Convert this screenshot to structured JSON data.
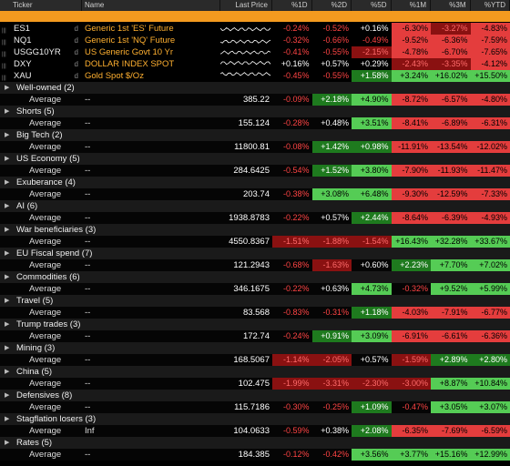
{
  "header": {
    "ticker": "Ticker",
    "name": "Name",
    "last_price": "Last Price",
    "p1d": "%1D",
    "p2d": "%2D",
    "p5d": "%5D",
    "p1m": "%1M",
    "p3m": "%3M",
    "pytd": "%YTD"
  },
  "securities": [
    {
      "ticker": "ES1",
      "name": "Generic 1st 'ES' Future",
      "d1": "-0.24%",
      "d2": "-0.52%",
      "d5": "+0.16%",
      "m1": "-6.30%",
      "m3": "-3.27%",
      "ytd": "-4.83%"
    },
    {
      "ticker": "NQ1",
      "name": "Generic 1st 'NQ' Future",
      "d1": "-0.32%",
      "d2": "-0.66%",
      "d5": "-0.49%",
      "m1": "-9.52%",
      "m3": "-6.36%",
      "ytd": "-7.59%"
    },
    {
      "ticker": "USGG10YR",
      "name": "US Generic Govt 10 Yr",
      "d1": "-0.41%",
      "d2": "-0.55%",
      "d5": "-2.15%",
      "m1": "-4.78%",
      "m3": "-6.70%",
      "ytd": "-7.65%"
    },
    {
      "ticker": "DXY",
      "name": "DOLLAR INDEX SPOT",
      "d1": "+0.16%",
      "d2": "+0.57%",
      "d5": "+0.29%",
      "m1": "-2.43%",
      "m3": "-3.35%",
      "ytd": "-4.12%"
    },
    {
      "ticker": "XAU",
      "name": "Gold Spot   $/Oz",
      "d1": "-0.45%",
      "d2": "-0.55%",
      "d5": "+1.58%",
      "m1": "+3.24%",
      "m3": "+16.02%",
      "ytd": "+15.50%"
    }
  ],
  "groups": [
    {
      "title": "Well-owned (2)",
      "label": "Average",
      "name": "--",
      "price": "385.22",
      "d1": "-0.09%",
      "d2": "+2.18%",
      "d5": "+4.90%",
      "m1": "-8.72%",
      "m3": "-6.57%",
      "ytd": "-4.80%"
    },
    {
      "title": "Shorts (5)",
      "label": "Average",
      "name": "--",
      "price": "155.124",
      "d1": "-0.28%",
      "d2": "+0.48%",
      "d5": "+3.51%",
      "m1": "-8.41%",
      "m3": "-6.89%",
      "ytd": "-6.31%"
    },
    {
      "title": "Big Tech (2)",
      "label": "Average",
      "name": "--",
      "price": "11800.81",
      "d1": "-0.08%",
      "d2": "+1.42%",
      "d5": "+0.98%",
      "m1": "-11.91%",
      "m3": "-13.54%",
      "ytd": "-12.02%"
    },
    {
      "title": "US Economy (5)",
      "label": "Average",
      "name": "--",
      "price": "284.6425",
      "d1": "-0.54%",
      "d2": "+1.52%",
      "d5": "+3.80%",
      "m1": "-7.90%",
      "m3": "-11.93%",
      "ytd": "-11.47%"
    },
    {
      "title": "Exuberance (4)",
      "label": "Average",
      "name": "--",
      "price": "203.74",
      "d1": "-0.38%",
      "d2": "+3.08%",
      "d5": "+6.48%",
      "m1": "-9.30%",
      "m3": "-12.59%",
      "ytd": "-7.33%"
    },
    {
      "title": "AI (6)",
      "label": "Average",
      "name": "--",
      "price": "1938.8783",
      "d1": "-0.22%",
      "d2": "+0.57%",
      "d5": "+2.44%",
      "m1": "-8.64%",
      "m3": "-6.39%",
      "ytd": "-4.93%"
    },
    {
      "title": "War beneficiaries (3)",
      "label": "Average",
      "name": "--",
      "price": "4550.8367",
      "d1": "-1.51%",
      "d2": "-1.88%",
      "d5": "-1.54%",
      "m1": "+16.43%",
      "m3": "+32.28%",
      "ytd": "+33.67%"
    },
    {
      "title": "EU Fiscal spend (7)",
      "label": "Average",
      "name": "--",
      "price": "121.2943",
      "d1": "-0.68%",
      "d2": "-1.63%",
      "d5": "+0.60%",
      "m1": "+2.23%",
      "m3": "+7.70%",
      "ytd": "+7.02%"
    },
    {
      "title": "Commodities (6)",
      "label": "Average",
      "name": "--",
      "price": "346.1675",
      "d1": "-0.22%",
      "d2": "+0.63%",
      "d5": "+4.73%",
      "m1": "-0.32%",
      "m3": "+9.52%",
      "ytd": "+5.99%"
    },
    {
      "title": "Travel (5)",
      "label": "Average",
      "name": "--",
      "price": "83.568",
      "d1": "-0.83%",
      "d2": "-0.31%",
      "d5": "+1.18%",
      "m1": "-4.03%",
      "m3": "-7.91%",
      "ytd": "-6.77%"
    },
    {
      "title": "Trump trades (3)",
      "label": "Average",
      "name": "--",
      "price": "172.74",
      "d1": "-0.24%",
      "d2": "+0.91%",
      "d5": "+3.09%",
      "m1": "-6.91%",
      "m3": "-6.61%",
      "ytd": "-6.36%"
    },
    {
      "title": "Mining (3)",
      "label": "Average",
      "name": "--",
      "price": "168.5067",
      "d1": "-1.14%",
      "d2": "-2.05%",
      "d5": "+0.57%",
      "m1": "-1.59%",
      "m3": "+2.89%",
      "ytd": "+2.80%"
    },
    {
      "title": "China (5)",
      "label": "Average",
      "name": "--",
      "price": "102.475",
      "d1": "-1.99%",
      "d2": "-3.31%",
      "d5": "-2.30%",
      "m1": "-3.00%",
      "m3": "+8.87%",
      "ytd": "+10.84%"
    },
    {
      "title": "Defensives (8)",
      "label": "Average",
      "name": "--",
      "price": "115.7186",
      "d1": "-0.30%",
      "d2": "-0.25%",
      "d5": "+1.09%",
      "m1": "-0.47%",
      "m3": "+3.05%",
      "ytd": "+3.07%"
    },
    {
      "title": "Stagflation losers (3)",
      "label": "Average",
      "name": "Inf",
      "price": "104.0633",
      "d1": "-0.59%",
      "d2": "+0.38%",
      "d5": "+2.08%",
      "m1": "-6.35%",
      "m3": "-7.69%",
      "ytd": "-6.59%"
    },
    {
      "title": "Rates (5)",
      "label": "Average",
      "name": "--",
      "price": "184.385",
      "d1": "-0.12%",
      "d2": "-0.42%",
      "d5": "+3.56%",
      "m1": "+3.77%",
      "m3": "+15.16%",
      "ytd": "+12.99%"
    }
  ],
  "colors": {
    "orange": "#f39a1f",
    "pos": "#1e7a1e",
    "pos_strong": "#55cc55",
    "neg": "#8a1111",
    "neg_strong": "#e43d3d"
  }
}
